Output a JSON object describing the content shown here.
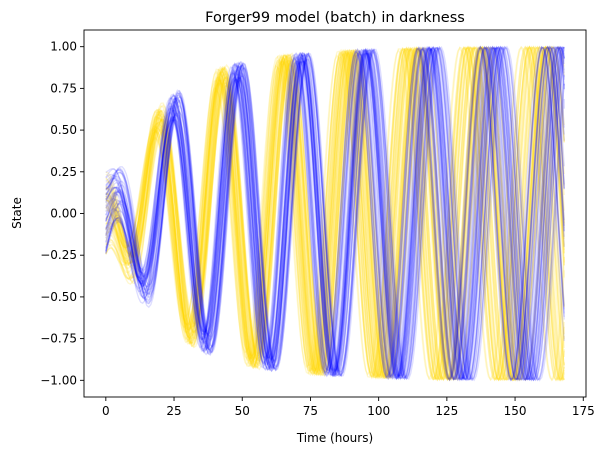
{
  "chart_data": {
    "type": "line",
    "title": "Forger99 model (batch) in darkness",
    "xlabel": "Time (hours)",
    "ylabel": "State",
    "xlim": [
      -8,
      176
    ],
    "ylim": [
      -1.1,
      1.1
    ],
    "xticks": [
      0,
      25,
      50,
      75,
      100,
      125,
      150,
      175
    ],
    "xtick_labels": [
      "0",
      "25",
      "50",
      "75",
      "100",
      "125",
      "150",
      "175"
    ],
    "yticks": [
      -1.0,
      -0.75,
      -0.5,
      -0.25,
      0.0,
      0.25,
      0.5,
      0.75,
      1.0
    ],
    "ytick_labels": [
      "−1.00",
      "−0.75",
      "−0.50",
      "−0.25",
      "0.00",
      "0.25",
      "0.50",
      "0.75",
      "1.00"
    ],
    "grid": false,
    "legend": "none",
    "x_range": [
      0,
      168
    ],
    "series_groups": [
      {
        "color": "#ffd700",
        "opacity": 0.18,
        "count": 50,
        "period_hours": [
          22.2,
          24.6
        ],
        "phase_offset_hours": 0,
        "final_amplitude": 1.0
      },
      {
        "color": "#0000ff",
        "opacity": 0.13,
        "count": 50,
        "period_hours": [
          22.5,
          24.2
        ],
        "phase_offset_hours": 6,
        "final_amplitude": 1.0
      }
    ]
  }
}
